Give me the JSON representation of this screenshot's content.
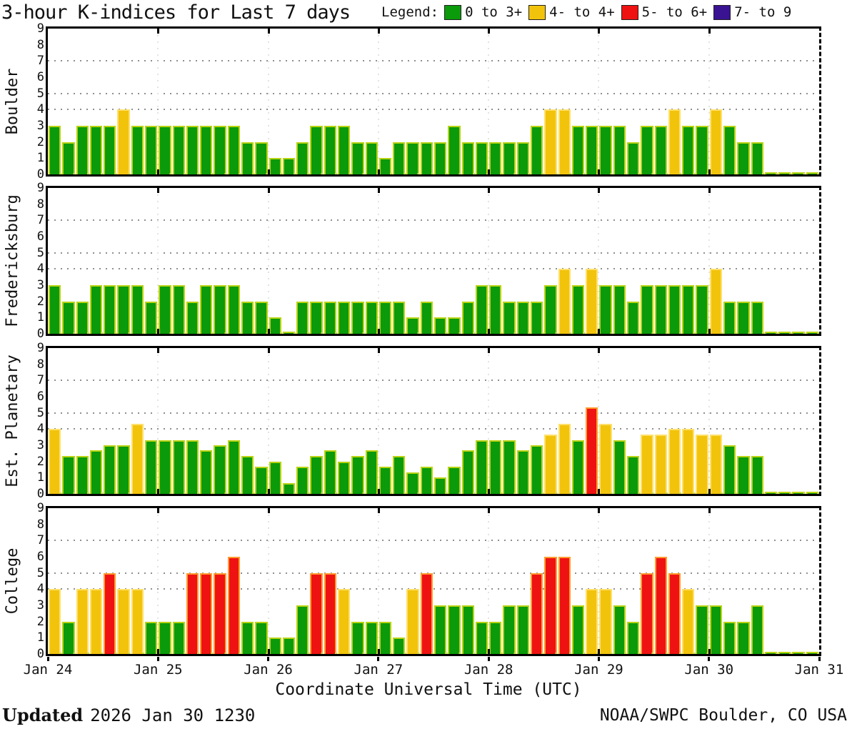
{
  "title": "3-hour K-indices for Last 7 days",
  "legend": {
    "label": "Legend:",
    "items": [
      {
        "label": "0 to 3+",
        "color": "#0a9a0a"
      },
      {
        "label": "4- to 4+",
        "color": "#f2c30b"
      },
      {
        "label": "5- to 6+",
        "color": "#ef1212"
      },
      {
        "label": "7- to 9",
        "color": "#3a1392"
      }
    ]
  },
  "x_axis": {
    "tick_labels": [
      "Jan 24",
      "Jan 25",
      "Jan 26",
      "Jan 27",
      "Jan 28",
      "Jan 29",
      "Jan 30",
      "Jan 31"
    ],
    "title": "Coordinate Universal Time (UTC)"
  },
  "footer": {
    "updated_label": "Updated",
    "updated_value": "2026 Jan 30 1230",
    "credit": "NOAA/SWPC Boulder, CO USA"
  },
  "chart_data": {
    "type": "bar",
    "title": "3-hour K-indices for Last 7 days",
    "ylim": [
      0,
      9
    ],
    "y_ticks": [
      0,
      1,
      2,
      3,
      4,
      5,
      6,
      7,
      8,
      9
    ],
    "grid_y": [
      4,
      5,
      7
    ],
    "hours_per_bar": 3,
    "bars_per_day": 8,
    "day_labels": [
      "Jan 24",
      "Jan 25",
      "Jan 26",
      "Jan 27",
      "Jan 28",
      "Jan 29",
      "Jan 30"
    ],
    "colors": {
      "green": "#0a9a0a",
      "yellow": "#f2c30b",
      "red": "#ef1212",
      "purple": "#3a1392"
    },
    "color_rule": "green 0-3+, yellow 4- to 4+, red 5- to 6+, purple 7- to 9",
    "panels": [
      {
        "station": "Boulder",
        "k_values_by_day": [
          [
            3,
            2,
            3,
            3,
            3,
            4,
            3,
            3
          ],
          [
            3,
            3,
            3,
            3,
            3,
            3,
            2,
            2
          ],
          [
            1,
            1,
            2,
            3,
            3,
            3,
            2,
            2
          ],
          [
            1,
            2,
            2,
            2,
            2,
            3,
            2,
            2
          ],
          [
            2,
            2,
            2,
            3,
            4,
            4,
            3,
            3
          ],
          [
            3,
            3,
            2,
            3,
            3,
            4,
            3,
            3
          ],
          [
            4,
            3,
            2,
            2,
            0,
            0,
            0,
            0
          ]
        ]
      },
      {
        "station": "Fredericksburg",
        "k_values_by_day": [
          [
            3,
            2,
            2,
            3,
            3,
            3,
            3,
            2
          ],
          [
            3,
            3,
            2,
            3,
            3,
            3,
            2,
            2
          ],
          [
            1,
            0,
            2,
            2,
            2,
            2,
            2,
            2
          ],
          [
            2,
            2,
            1,
            2,
            1,
            1,
            2,
            3
          ],
          [
            3,
            2,
            2,
            2,
            3,
            4,
            3,
            4
          ],
          [
            3,
            3,
            2,
            3,
            3,
            3,
            3,
            3
          ],
          [
            4,
            2,
            2,
            2,
            0,
            0,
            0,
            0
          ]
        ]
      },
      {
        "station": "Est. Planetary",
        "k_values_by_day": [
          [
            4,
            2.33,
            2.33,
            2.67,
            3,
            3,
            4.33,
            3.33
          ],
          [
            3.33,
            3.33,
            3.33,
            2.67,
            3,
            3.33,
            2.33,
            1.67
          ],
          [
            2,
            0.67,
            1.67,
            2.33,
            2.67,
            2,
            2.33,
            2.67
          ],
          [
            1.67,
            2.33,
            1.33,
            1.67,
            1,
            1.67,
            2.67,
            3.33
          ],
          [
            3.33,
            3.33,
            2.67,
            3,
            3.67,
            4.33,
            3.33,
            5.33
          ],
          [
            4.33,
            3.33,
            2.33,
            3.67,
            3.67,
            4,
            4,
            3.67
          ],
          [
            3.67,
            3,
            2.33,
            2.33,
            0,
            0,
            0,
            0
          ]
        ]
      },
      {
        "station": "College",
        "k_values_by_day": [
          [
            4,
            2,
            4,
            4,
            5,
            4,
            4,
            2
          ],
          [
            2,
            2,
            5,
            5,
            5,
            6,
            2,
            2
          ],
          [
            1,
            1,
            3,
            5,
            5,
            4,
            2,
            2
          ],
          [
            2,
            1,
            4,
            5,
            3,
            3,
            3,
            2
          ],
          [
            2,
            3,
            3,
            5,
            6,
            6,
            3,
            4
          ],
          [
            4,
            3,
            2,
            5,
            6,
            5,
            4,
            3
          ],
          [
            3,
            2,
            2,
            3,
            0,
            0,
            0,
            0
          ]
        ]
      }
    ]
  }
}
